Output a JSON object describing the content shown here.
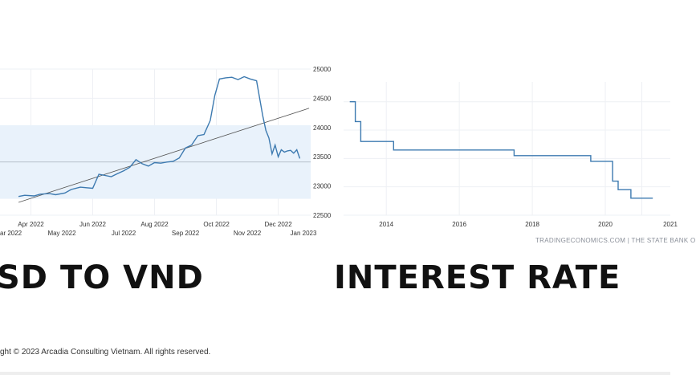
{
  "titles": {
    "left": "SD TO VND",
    "right": "INTEREST RATE"
  },
  "footer": {
    "source": "TRADINGECONOMICS.COM | THE STATE BANK O",
    "copyright": "ght © 2023 Arcadia Consulting Vietnam. All rights reserved."
  },
  "colors": {
    "line": "#3d7ab0",
    "band": "#e9f2fb",
    "grid": "#eef0f4",
    "trend": "#555555"
  },
  "chart_data": [
    {
      "type": "line",
      "title": "",
      "xlabel": "",
      "ylabel": "",
      "ylim": [
        22500,
        25000
      ],
      "y_ticks": [
        22500,
        23000,
        23500,
        24000,
        24500,
        25000
      ],
      "x_ticks_row1": [
        "Apr 2022",
        "Jun 2022",
        "Aug 2022",
        "Oct 2022",
        "Dec 2022"
      ],
      "x_ticks_row2": [
        "ar 2022",
        "May 2022",
        "Jul 2022",
        "Sep 2022",
        "Nov 2022",
        "Jan 2023"
      ],
      "band": [
        22780,
        24040
      ],
      "trend": [
        [
          -0.2,
          22720
        ],
        [
          9.2,
          24330
        ]
      ],
      "reference_line": 23410,
      "legend": "none",
      "series": [
        {
          "x": [
            -0.2,
            0.0,
            0.3,
            0.5,
            0.8,
            1.0,
            1.3,
            1.5,
            1.8,
            2.0,
            2.2,
            2.4,
            2.6,
            2.8,
            3.0,
            3.2,
            3.4,
            3.6,
            3.8,
            4.0,
            4.2,
            4.4,
            4.6,
            4.8,
            5.0,
            5.2,
            5.4,
            5.6,
            5.8,
            6.0,
            6.15,
            6.3,
            6.5,
            6.7,
            6.9,
            7.1,
            7.3,
            7.5,
            7.7,
            7.8,
            7.9,
            8.0,
            8.1,
            8.2,
            8.3,
            8.4,
            8.5,
            8.6,
            8.7,
            8.8,
            8.9
          ],
          "values": [
            22820,
            22840,
            22830,
            22860,
            22870,
            22850,
            22880,
            22940,
            22980,
            22970,
            22960,
            23200,
            23180,
            23160,
            23210,
            23260,
            23320,
            23450,
            23380,
            23340,
            23400,
            23390,
            23410,
            23420,
            23480,
            23650,
            23700,
            23860,
            23880,
            24120,
            24550,
            24830,
            24850,
            24860,
            24820,
            24870,
            24830,
            24800,
            24200,
            23950,
            23820,
            23550,
            23700,
            23500,
            23620,
            23580,
            23600,
            23610,
            23560,
            23620,
            23470
          ]
        }
      ]
    },
    {
      "type": "line",
      "title": "",
      "xlabel": "",
      "ylabel": "",
      "xlim": [
        2013.0,
        2021.3
      ],
      "x_ticks": [
        "2014",
        "2016",
        "2018",
        "2020",
        "2021"
      ],
      "legend": "none",
      "series": [
        {
          "x": [
            2013.0,
            2013.15,
            2013.15,
            2013.3,
            2013.3,
            2014.2,
            2014.2,
            2017.5,
            2017.5,
            2019.6,
            2019.6,
            2020.2,
            2020.2,
            2020.35,
            2020.35,
            2020.7,
            2020.7,
            2021.3
          ],
          "values": [
            4.5,
            4.5,
            4.15,
            4.15,
            3.8,
            3.8,
            3.65,
            3.65,
            3.55,
            3.55,
            3.45,
            3.45,
            3.1,
            3.1,
            2.95,
            2.95,
            2.8,
            2.8
          ]
        }
      ]
    }
  ]
}
